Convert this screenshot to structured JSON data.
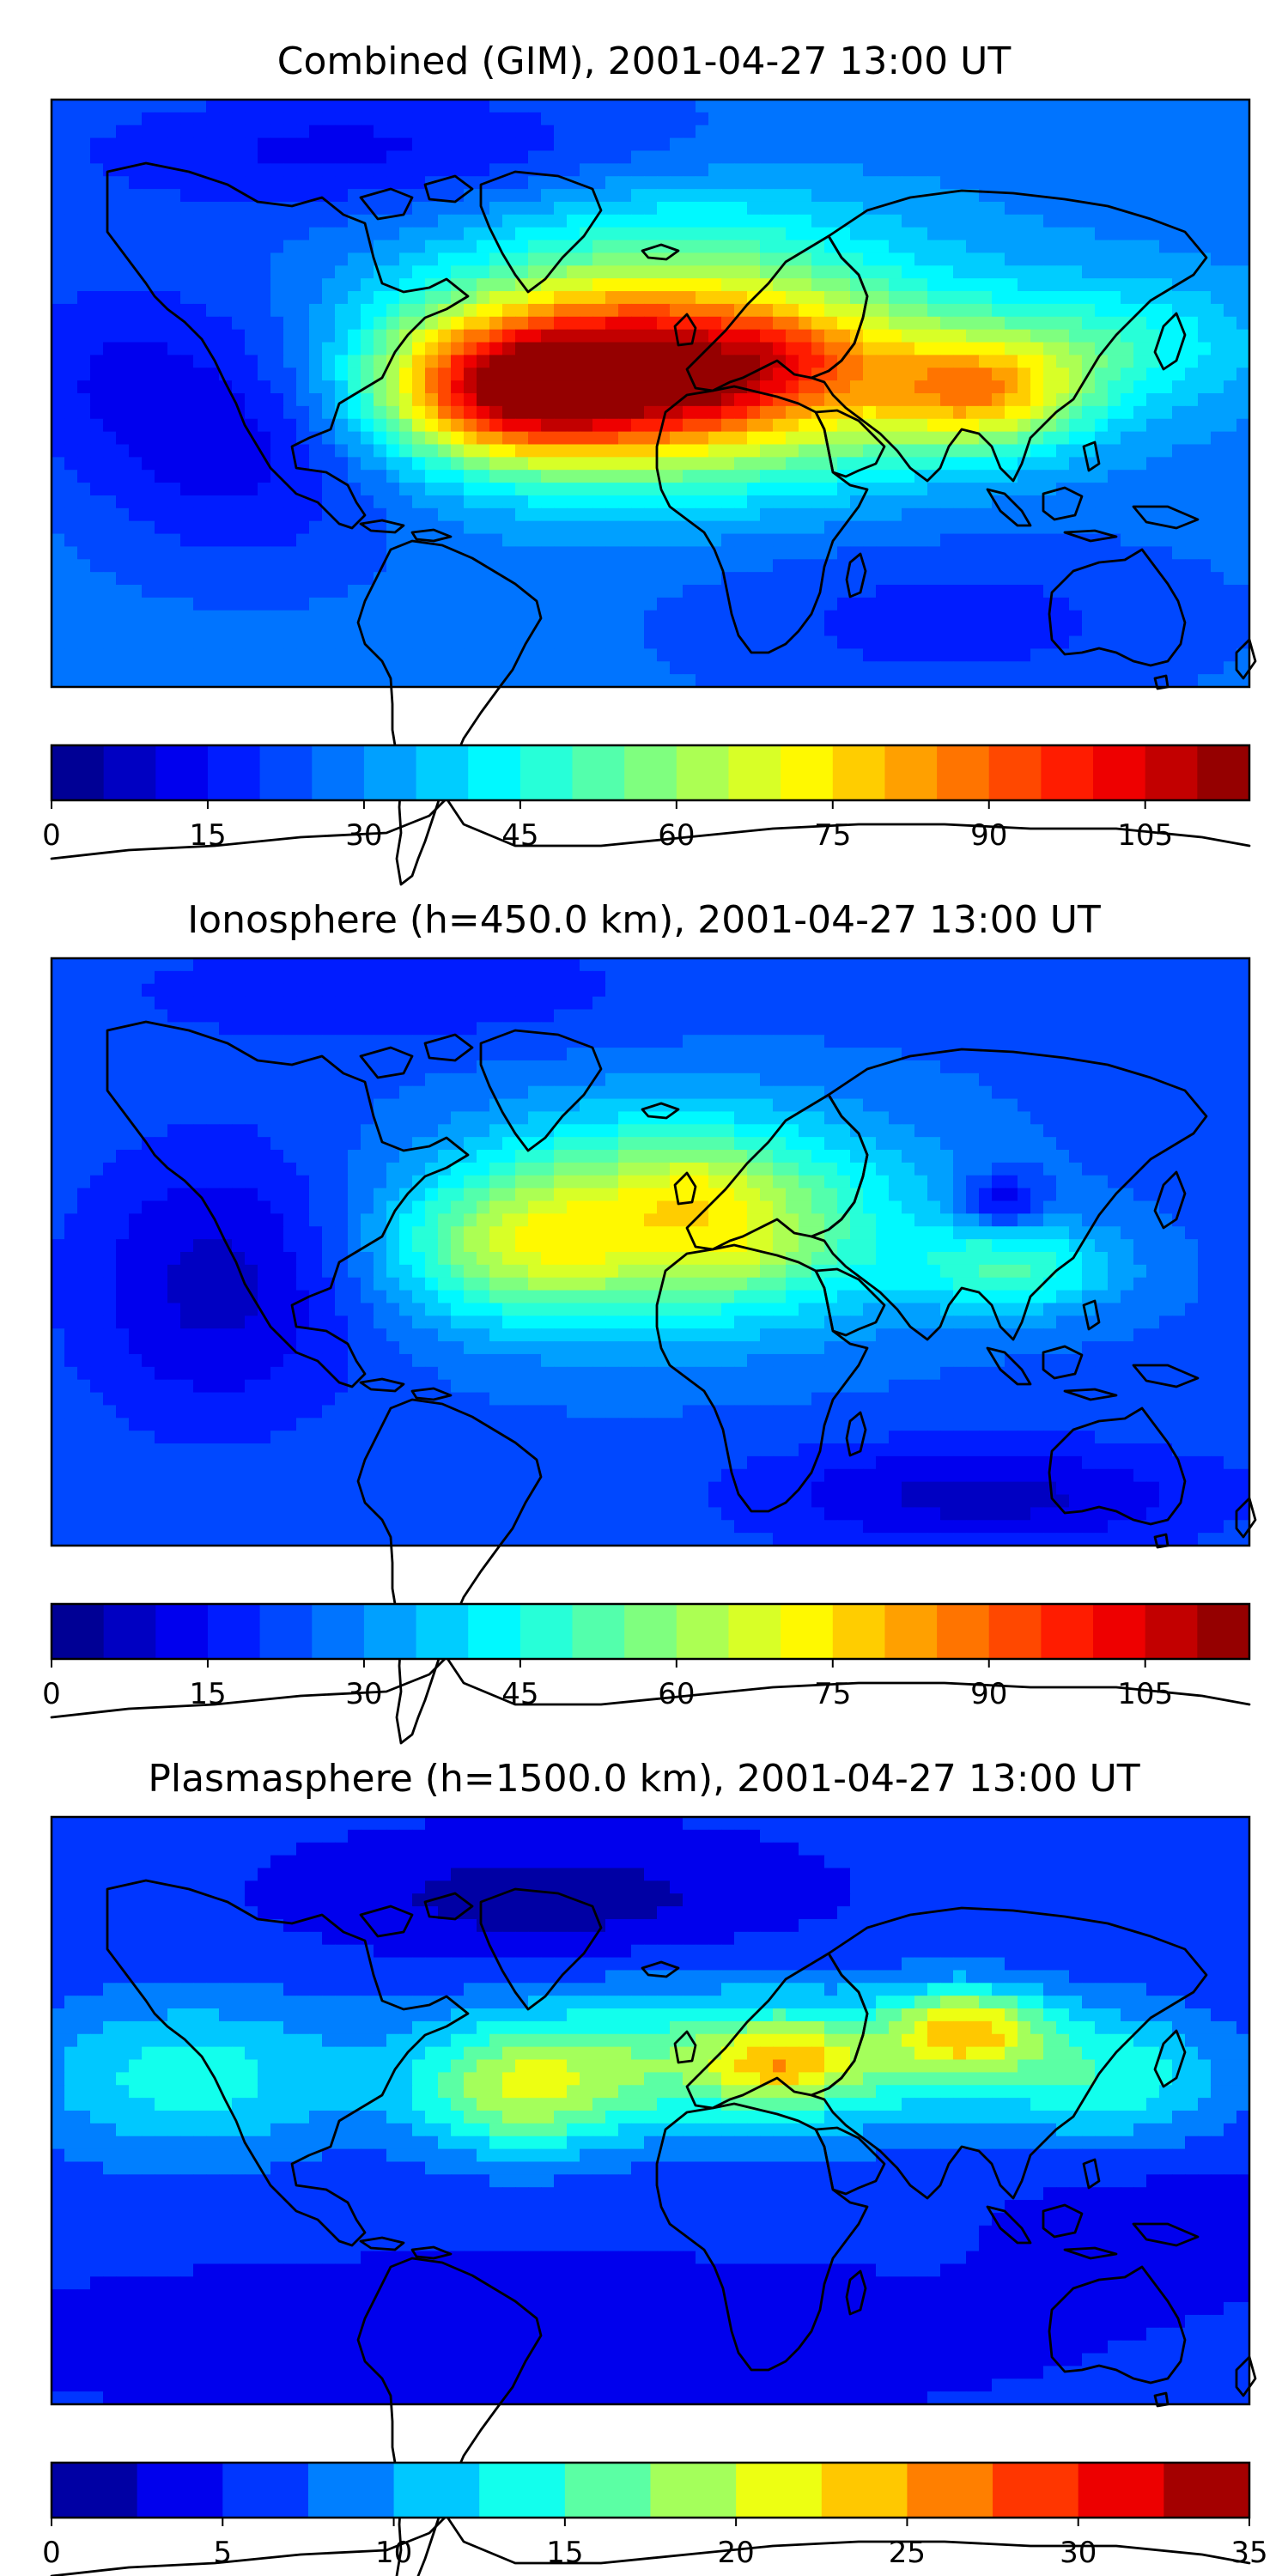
{
  "chart_data": [
    {
      "type": "heatmap",
      "title": "Combined (GIM), 2001-04-27 13:00 UT",
      "colorbar": {
        "min": 0,
        "max": 115,
        "step": 5,
        "tick_values": [
          0,
          15,
          30,
          45,
          60,
          75,
          90,
          105
        ],
        "tick_labels": [
          "0",
          "15",
          "30",
          "45",
          "60",
          "75",
          "90",
          "105"
        ]
      },
      "base_value": 28,
      "features": [
        {
          "lon": 5,
          "lat": 8,
          "value": 82,
          "slon": 55,
          "slat": 22
        },
        {
          "lon": 18,
          "lat": 2,
          "value": 8,
          "slon": 14,
          "slat": 7
        },
        {
          "lon": 42,
          "lat": 12,
          "value": 8,
          "slon": 14,
          "slat": 7
        },
        {
          "lon": -42,
          "lat": 0,
          "value": 42,
          "slon": 28,
          "slat": 14
        },
        {
          "lon": 100,
          "lat": 0,
          "value": 38,
          "slon": 22,
          "slat": 12
        },
        {
          "lon": 140,
          "lat": 15,
          "value": 16,
          "slon": 30,
          "slat": 14
        },
        {
          "lon": -120,
          "lat": -10,
          "value": -18,
          "slon": 35,
          "slat": 30
        },
        {
          "lon": -170,
          "lat": 10,
          "value": -8,
          "slon": 25,
          "slat": 25
        },
        {
          "lon": 10,
          "lat": 55,
          "value": 8,
          "slon": 45,
          "slat": 12
        },
        {
          "lon": -90,
          "lat": 75,
          "value": -14,
          "slon": 70,
          "slat": 15
        },
        {
          "lon": 90,
          "lat": -70,
          "value": -10,
          "slon": 60,
          "slat": 20
        }
      ]
    },
    {
      "type": "heatmap",
      "title": "Ionosphere  (h=450.0 km), 2001-04-27 13:00 UT",
      "colorbar": {
        "min": 0,
        "max": 115,
        "step": 5,
        "tick_values": [
          0,
          15,
          30,
          45,
          60,
          75,
          90,
          105
        ],
        "tick_labels": [
          "0",
          "15",
          "30",
          "45",
          "60",
          "75",
          "90",
          "105"
        ]
      },
      "base_value": 24,
      "features": [
        {
          "lon": 8,
          "lat": 10,
          "value": 47,
          "slon": 45,
          "slat": 22
        },
        {
          "lon": 15,
          "lat": 20,
          "value": 6,
          "slon": 12,
          "slat": 8
        },
        {
          "lon": 30,
          "lat": 0,
          "value": 6,
          "slon": 15,
          "slat": 8
        },
        {
          "lon": -45,
          "lat": 0,
          "value": 22,
          "slon": 25,
          "slat": 15
        },
        {
          "lon": 110,
          "lat": -5,
          "value": 24,
          "slon": 22,
          "slat": 10
        },
        {
          "lon": 105,
          "lat": 15,
          "value": -18,
          "slon": 8,
          "slat": 6
        },
        {
          "lon": -130,
          "lat": -10,
          "value": -16,
          "slon": 30,
          "slat": 30
        },
        {
          "lon": 100,
          "lat": -75,
          "value": -16,
          "slon": 50,
          "slat": 12
        },
        {
          "lon": -80,
          "lat": 80,
          "value": -8,
          "slon": 60,
          "slat": 12
        }
      ]
    },
    {
      "type": "heatmap",
      "title": "Plasmasphere (h=1500.0 km), 2001-04-27 13:00 UT",
      "colorbar": {
        "min": 0,
        "max": 35,
        "step": 2.5,
        "tick_values": [
          0,
          5,
          10,
          15,
          20,
          25,
          30,
          35
        ],
        "tick_labels": [
          "0",
          "5",
          "10",
          "15",
          "20",
          "25",
          "30",
          "35"
        ]
      },
      "base_value": 5.5,
      "features": [
        {
          "lon": 30,
          "lat": 15,
          "value": 12,
          "slon": 60,
          "slat": 16
        },
        {
          "lon": 40,
          "lat": 15,
          "value": 8,
          "slon": 14,
          "slat": 8
        },
        {
          "lon": 95,
          "lat": 25,
          "value": 13,
          "slon": 16,
          "slat": 9
        },
        {
          "lon": -40,
          "lat": 5,
          "value": 10,
          "slon": 22,
          "slat": 14
        },
        {
          "lon": -140,
          "lat": 10,
          "value": 8,
          "slon": 35,
          "slat": 18
        },
        {
          "lon": 140,
          "lat": 10,
          "value": 7,
          "slon": 25,
          "slat": 15
        },
        {
          "lon": -30,
          "lat": 65,
          "value": -4.5,
          "slon": 45,
          "slat": 12
        },
        {
          "lon": -40,
          "lat": -70,
          "value": -3,
          "slon": 90,
          "slat": 14
        },
        {
          "lon": 150,
          "lat": -35,
          "value": -2,
          "slon": 30,
          "slat": 15
        }
      ]
    }
  ],
  "colors": {
    "jet": [
      "#00007f",
      "#0000ff",
      "#007fff",
      "#00ffff",
      "#7fff7f",
      "#ffff00",
      "#ff7f00",
      "#ff0000",
      "#7f0000"
    ],
    "coastline": "#000000",
    "frame": "#000000"
  }
}
